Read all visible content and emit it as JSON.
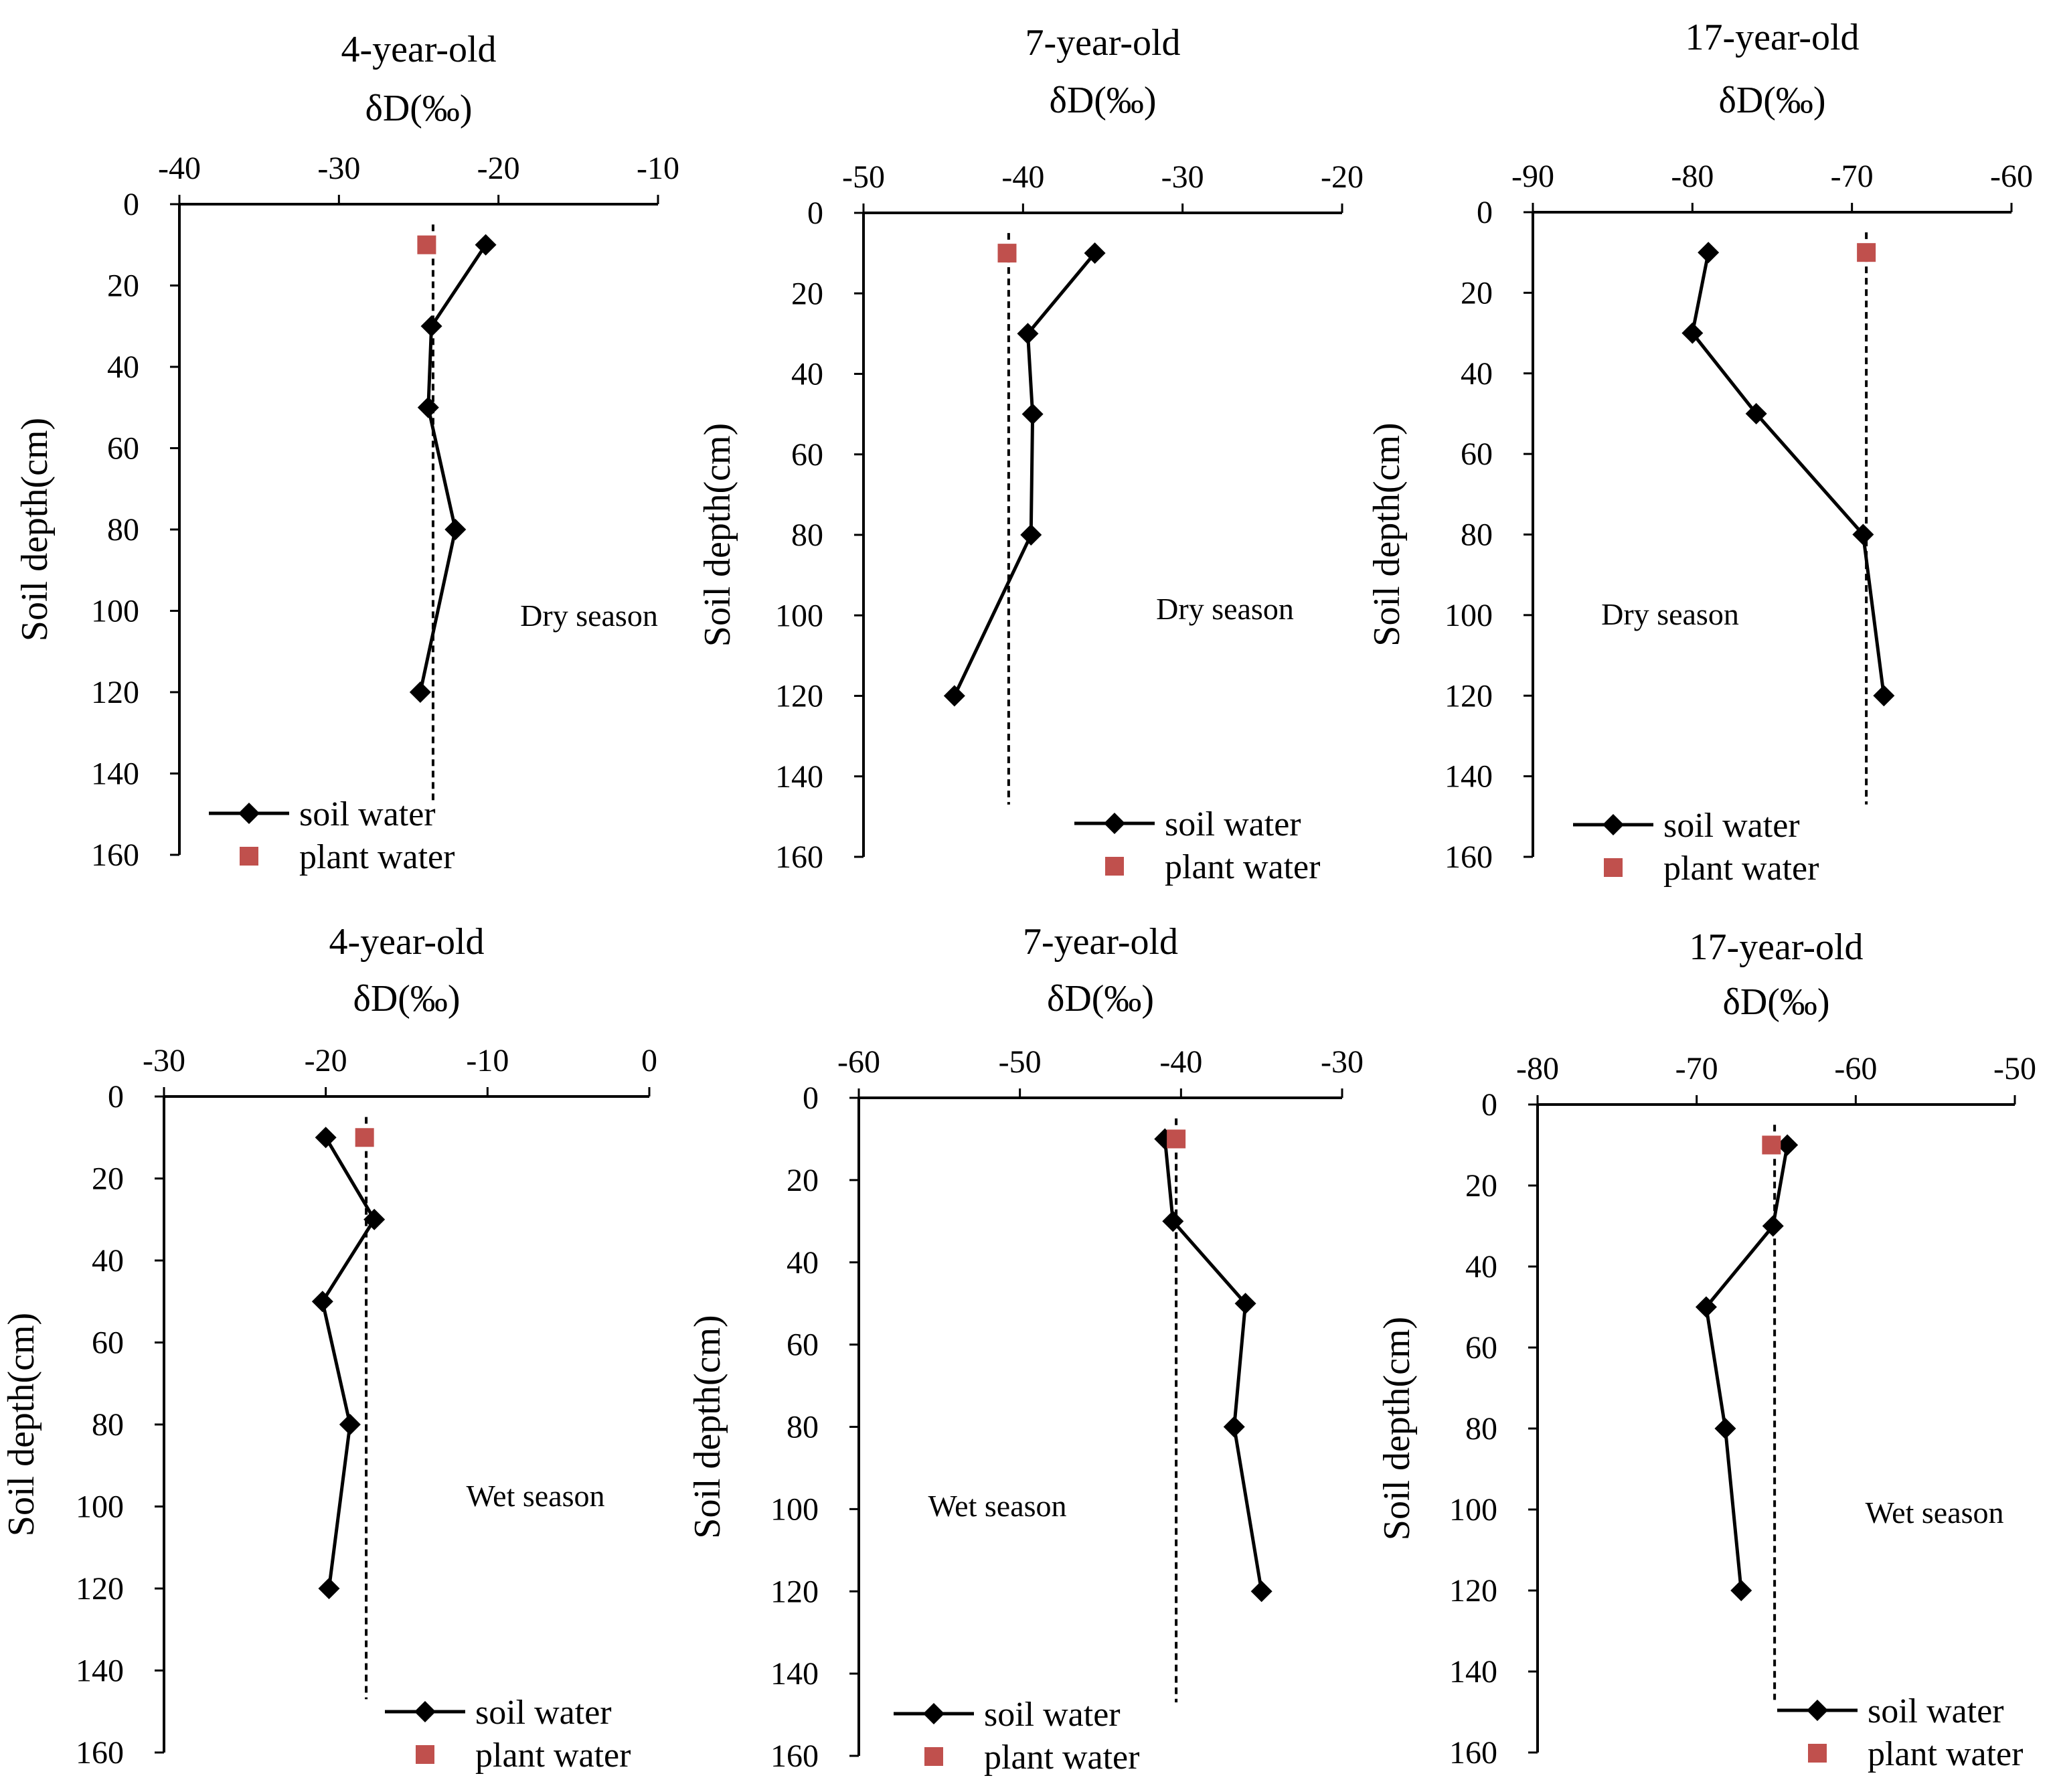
{
  "chart_data": [
    {
      "type": "line",
      "title": "4-year-old",
      "xlabel": "δD(‰)",
      "ylabel": "Soil depth(cm)",
      "xlim": [
        -40,
        -10
      ],
      "xticks": [
        -40,
        -30,
        -20,
        -10
      ],
      "ylim": [
        0,
        160
      ],
      "yticks": [
        0,
        20,
        40,
        60,
        80,
        100,
        120,
        140,
        160
      ],
      "season": "Dry season",
      "series": [
        {
          "name": "soil water",
          "x": [
            -20.8,
            -24.2,
            -24.4,
            -22.7,
            -24.9
          ],
          "y": [
            10,
            30,
            50,
            80,
            120
          ]
        },
        {
          "name": "plant water",
          "x": [
            -24.5
          ],
          "y": [
            10
          ]
        }
      ],
      "reference_line": {
        "x": -24.1
      }
    },
    {
      "type": "line",
      "title": "7-year-old",
      "xlabel": "δD(‰)",
      "ylabel": "Soil depth(cm)",
      "xlim": [
        -50,
        -20
      ],
      "xticks": [
        -50,
        -40,
        -30,
        -20
      ],
      "ylim": [
        0,
        160
      ],
      "yticks": [
        0,
        20,
        40,
        60,
        80,
        100,
        120,
        140,
        160
      ],
      "season": "Dry season",
      "series": [
        {
          "name": "soil water",
          "x": [
            -35.5,
            -39.7,
            -39.4,
            -39.5,
            -44.3
          ],
          "y": [
            10,
            30,
            50,
            80,
            120
          ]
        },
        {
          "name": "plant water",
          "x": [
            -41.0
          ],
          "y": [
            10
          ]
        }
      ],
      "reference_line": {
        "x": -40.9
      }
    },
    {
      "type": "line",
      "title": "17-year-old",
      "xlabel": "δD(‰)",
      "ylabel": "Soil depth(cm)",
      "xlim": [
        -90,
        -60
      ],
      "xticks": [
        -90,
        -80,
        -70,
        -60
      ],
      "ylim": [
        0,
        160
      ],
      "yticks": [
        0,
        20,
        40,
        60,
        80,
        100,
        120,
        140,
        160
      ],
      "season": "Dry season",
      "series": [
        {
          "name": "soil water",
          "x": [
            -79.0,
            -80.0,
            -76.0,
            -69.3,
            -68.0
          ],
          "y": [
            10,
            30,
            50,
            80,
            120
          ]
        },
        {
          "name": "plant water",
          "x": [
            -69.1
          ],
          "y": [
            10
          ]
        }
      ],
      "reference_line": {
        "x": -69.1
      }
    },
    {
      "type": "line",
      "title": "4-year-old",
      "xlabel": "δD(‰)",
      "ylabel": "Soil depth(cm)",
      "xlim": [
        -30,
        0
      ],
      "xticks": [
        -30,
        -20,
        -10,
        0
      ],
      "ylim": [
        0,
        160
      ],
      "yticks": [
        0,
        20,
        40,
        60,
        80,
        100,
        120,
        140,
        160
      ],
      "season": "Wet season",
      "series": [
        {
          "name": "soil water",
          "x": [
            -20.0,
            -17.0,
            -20.2,
            -18.5,
            -19.8
          ],
          "y": [
            10,
            30,
            50,
            80,
            120
          ]
        },
        {
          "name": "plant water",
          "x": [
            -17.6
          ],
          "y": [
            10
          ]
        }
      ],
      "reference_line": {
        "x": -17.5
      }
    },
    {
      "type": "line",
      "title": "7-year-old",
      "xlabel": "δD(‰)",
      "ylabel": "Soil depth(cm)",
      "xlim": [
        -60,
        -30
      ],
      "xticks": [
        -60,
        -50,
        -40,
        -30
      ],
      "ylim": [
        0,
        160
      ],
      "yticks": [
        0,
        20,
        40,
        60,
        80,
        100,
        120,
        140,
        160
      ],
      "season": "Wet season",
      "series": [
        {
          "name": "soil water",
          "x": [
            -41.0,
            -40.5,
            -36.0,
            -36.7,
            -35.0
          ],
          "y": [
            10,
            30,
            50,
            80,
            120
          ]
        },
        {
          "name": "plant water",
          "x": [
            -40.3
          ],
          "y": [
            10
          ]
        }
      ],
      "reference_line": {
        "x": -40.3
      }
    },
    {
      "type": "line",
      "title": "17-year-old",
      "xlabel": "δD(‰)",
      "ylabel": "Soil depth(cm)",
      "xlim": [
        -80,
        -50
      ],
      "xticks": [
        -80,
        -70,
        -60,
        -50
      ],
      "ylim": [
        0,
        160
      ],
      "yticks": [
        0,
        20,
        40,
        60,
        80,
        100,
        120,
        140,
        160
      ],
      "season": "Wet season",
      "series": [
        {
          "name": "soil water",
          "x": [
            -64.3,
            -65.2,
            -69.4,
            -68.2,
            -67.2
          ],
          "y": [
            10,
            30,
            50,
            80,
            120
          ]
        },
        {
          "name": "plant water",
          "x": [
            -65.3
          ],
          "y": [
            10
          ]
        }
      ],
      "reference_line": {
        "x": -65.1
      }
    }
  ],
  "colors": {
    "soil_water": "#000000",
    "plant_water": "#C0504D",
    "axis": "#000000"
  }
}
